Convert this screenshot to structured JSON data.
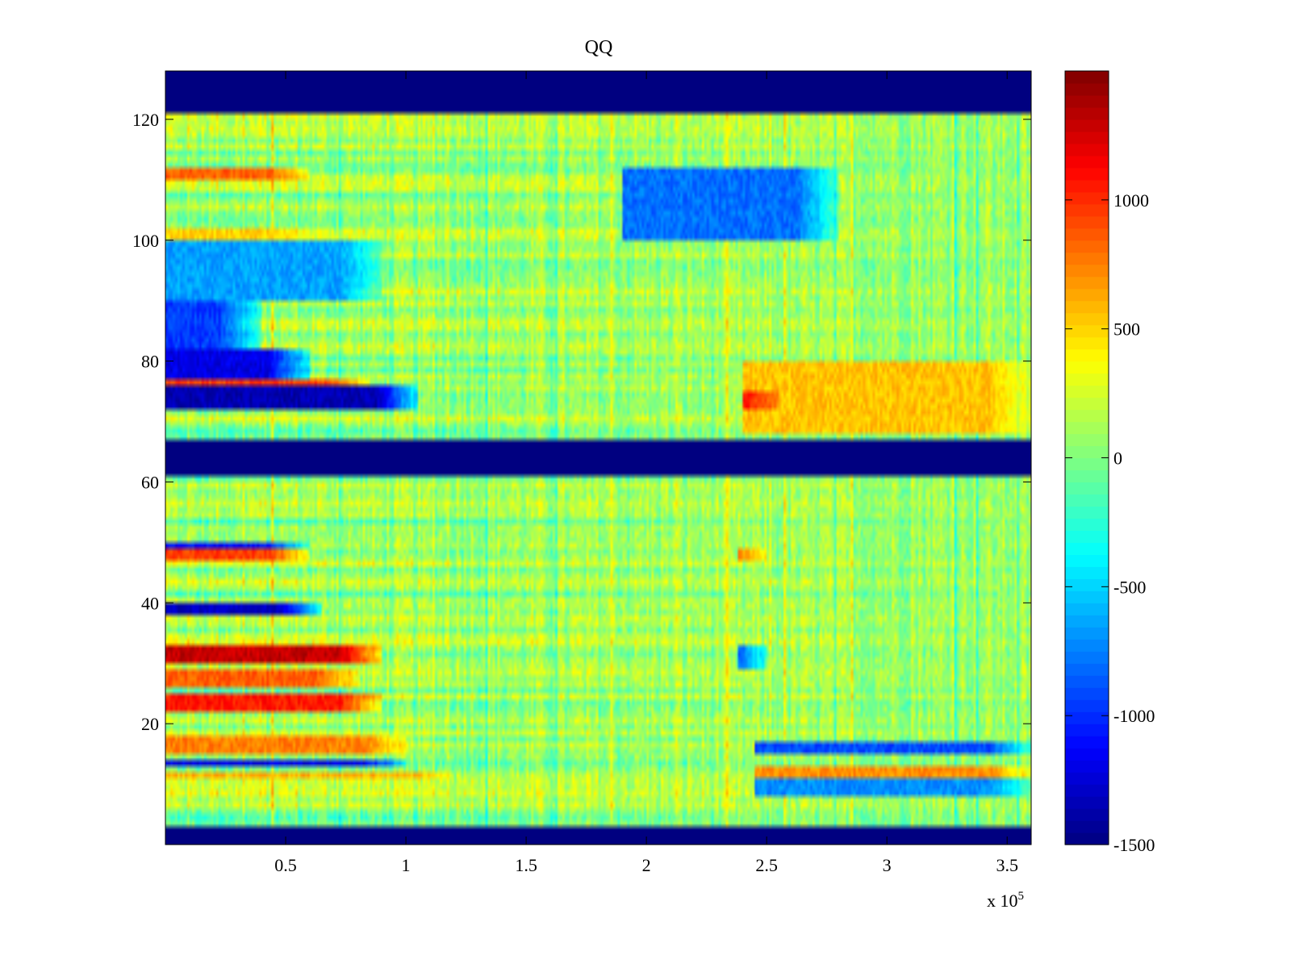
{
  "chart_data": {
    "type": "heatmap",
    "title": "QQ",
    "xlabel": "",
    "ylabel": "",
    "x_multiplier_label": "x 10",
    "x_multiplier_exponent": "5",
    "xlim": [
      0,
      3.6
    ],
    "ylim": [
      0,
      128
    ],
    "x_ticks": [
      0.5,
      1,
      1.5,
      2,
      2.5,
      3,
      3.5
    ],
    "x_tick_labels": [
      "0.5",
      "1",
      "1.5",
      "2",
      "2.5",
      "3",
      "3.5"
    ],
    "y_ticks": [
      20,
      40,
      60,
      80,
      100,
      120
    ],
    "y_tick_labels": [
      "20",
      "40",
      "60",
      "80",
      "100",
      "120"
    ],
    "colorbar": {
      "colormap": "jet",
      "range": [
        -1500,
        1500
      ],
      "ticks": [
        -1500,
        -1000,
        -500,
        0,
        500,
        1000
      ],
      "tick_labels": [
        "-1500",
        "-1000",
        "-500",
        "0",
        "500",
        "1000"
      ]
    },
    "empty_row_bands": [
      [
        0,
        3
      ],
      [
        61,
        67
      ],
      [
        121,
        128
      ]
    ],
    "empty_band_value": -1500,
    "features": [
      {
        "rows": [
          30,
          33
        ],
        "x": [
          0,
          0.9
        ],
        "value": 1300
      },
      {
        "rows": [
          22,
          25
        ],
        "x": [
          0,
          0.9
        ],
        "value": 1050
      },
      {
        "rows": [
          26,
          29
        ],
        "x": [
          0,
          0.8
        ],
        "value": 850
      },
      {
        "rows": [
          15,
          18
        ],
        "x": [
          0,
          1.0
        ],
        "value": 750
      },
      {
        "rows": [
          11,
          12
        ],
        "x": [
          0,
          1.2
        ],
        "value": 600
      },
      {
        "rows": [
          13,
          14
        ],
        "x": [
          0,
          1.0
        ],
        "value": -1200
      },
      {
        "rows": [
          38,
          40
        ],
        "x": [
          0,
          0.65
        ],
        "value": -1300
      },
      {
        "rows": [
          47,
          49
        ],
        "x": [
          0,
          0.6
        ],
        "value": 950
      },
      {
        "rows": [
          49,
          50
        ],
        "x": [
          0,
          0.6
        ],
        "value": -1100
      },
      {
        "rows": [
          72,
          76
        ],
        "x": [
          0,
          1.05
        ],
        "value": -1350
      },
      {
        "rows": [
          76,
          77
        ],
        "x": [
          0,
          0.85
        ],
        "value": 950
      },
      {
        "rows": [
          77,
          82
        ],
        "x": [
          0,
          0.6
        ],
        "value": -1200
      },
      {
        "rows": [
          82,
          90
        ],
        "x": [
          0,
          0.4
        ],
        "value": -950
      },
      {
        "rows": [
          90,
          100
        ],
        "x": [
          0,
          0.9
        ],
        "value": -650
      },
      {
        "rows": [
          110,
          112
        ],
        "x": [
          0,
          0.6
        ],
        "value": 850
      },
      {
        "rows": [
          100,
          102
        ],
        "x": [
          0,
          0.6
        ],
        "value": 500
      },
      {
        "rows": [
          100,
          112
        ],
        "x": [
          1.9,
          2.8
        ],
        "value": -800
      },
      {
        "rows": [
          68,
          80
        ],
        "x": [
          2.4,
          3.6
        ],
        "value": 550
      },
      {
        "rows": [
          72,
          75
        ],
        "x": [
          2.4,
          2.55
        ],
        "value": 1150
      },
      {
        "rows": [
          29,
          33
        ],
        "x": [
          2.38,
          2.5
        ],
        "value": -1100
      },
      {
        "rows": [
          47,
          49
        ],
        "x": [
          2.38,
          2.5
        ],
        "value": 1000
      },
      {
        "rows": [
          15,
          17
        ],
        "x": [
          2.45,
          3.6
        ],
        "value": -900
      },
      {
        "rows": [
          8,
          11
        ],
        "x": [
          2.45,
          3.6
        ],
        "value": -700
      },
      {
        "rows": [
          11,
          13
        ],
        "x": [
          2.45,
          3.6
        ],
        "value": 700
      }
    ]
  }
}
